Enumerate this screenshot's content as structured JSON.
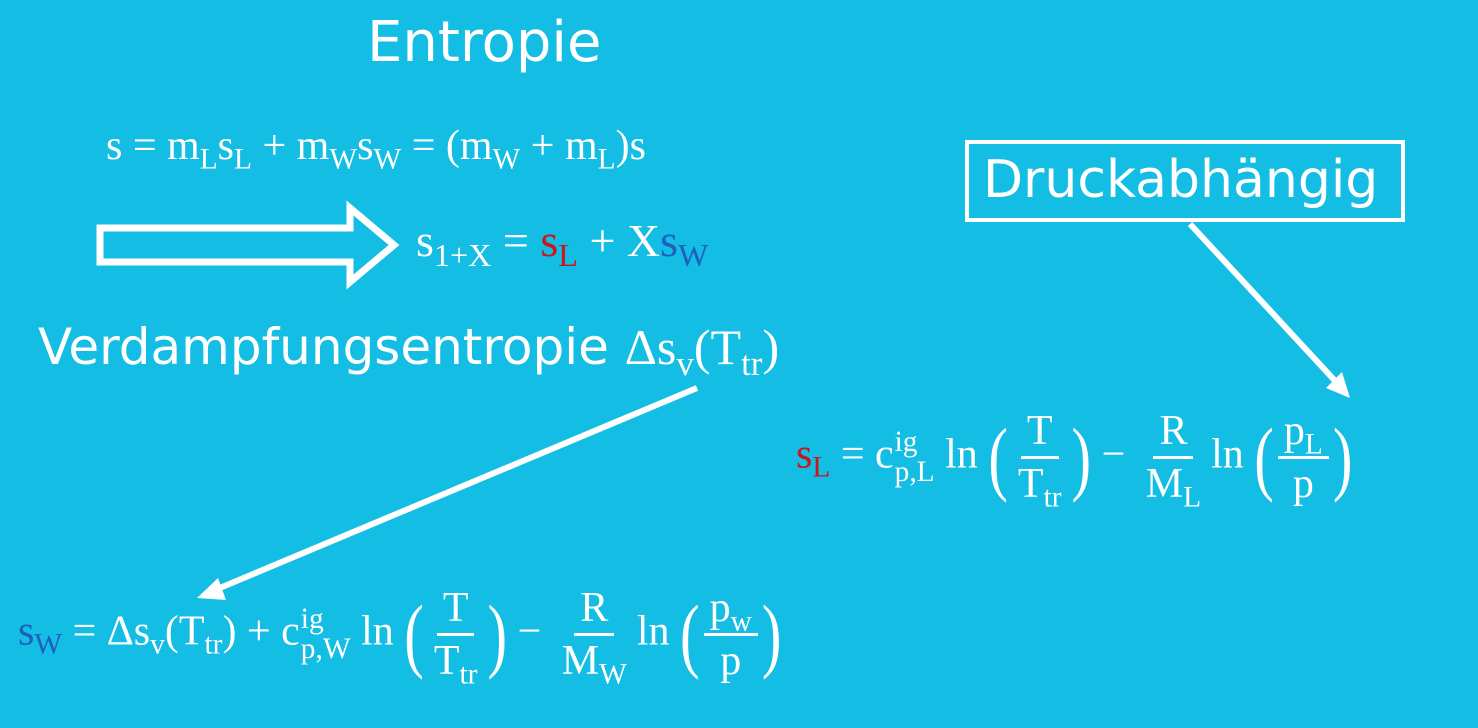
{
  "title": "Entropie",
  "eq1": "s = mₗsₗ + m_W s_W = (m_W + m_L)s",
  "eq1_parts": {
    "lhs": "s = m",
    "p1": "L",
    "p2": "s",
    "p3": "L",
    "p4": " + m",
    "p5": "W",
    "p6": "s",
    "p7": "W",
    "p8": " = (m",
    "p9": "W",
    "p10": " + m",
    "p11": "L",
    "p12": ")s"
  },
  "eq2_parts": {
    "s": "s",
    "sub": "1+X",
    "eq": " = ",
    "sL": "s",
    "L": "L",
    "plus": " + X",
    "sW": "s",
    "W": "W"
  },
  "heading_text": "Verdampfungsentropie ",
  "heading_math": {
    "delta": "Δs",
    "v": "v",
    "open": "(T",
    "tr": "tr",
    "close": ")"
  },
  "box_label": "Druckabhängig",
  "eqL": {
    "s": "s",
    "L": "L",
    "eq": " = c",
    "sup": "ig",
    "sub": "p,L",
    "ln1": " ln",
    "num1": "T",
    "den1": "T",
    "den1sub": "tr",
    "minus": " − ",
    "num2": "R",
    "den2": "M",
    "den2sub": "L",
    "ln2": "ln",
    "num3": "p",
    "num3sub": "L",
    "den3": "p"
  },
  "eqW": {
    "s": "s",
    "W": "W",
    "eq": " = Δs",
    "v": "v",
    "open": "(T",
    "tr": "tr",
    "close": ") + c",
    "sup": "ig",
    "sub": "p,W",
    "ln1": " ln",
    "num1": "T",
    "den1": "T",
    "den1sub": "tr",
    "minus": " − ",
    "num2": "R",
    "den2": "M",
    "den2sub": "W",
    "ln2": "ln",
    "num3": "p",
    "num3sub": "w",
    "den3": "p"
  },
  "colors": {
    "background": "#14bde3",
    "foreground": "#ffffff",
    "red": "#c8161b",
    "blue": "#1f5fbf"
  }
}
